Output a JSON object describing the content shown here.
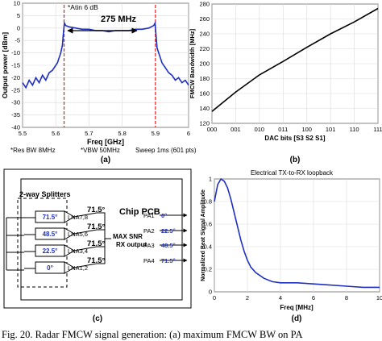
{
  "panels": {
    "a": {
      "label": "(a)",
      "annotation": "*Atin 6 dB",
      "bw_label": "275 MHz",
      "notes": [
        "*Res BW 8MHz",
        "*VBW 50MHz",
        "Sweep 1ms (601 pts)"
      ]
    },
    "b": {
      "label": "(b)"
    },
    "c": {
      "label": "(c)",
      "splitter_label": "2-way Splitters",
      "chip_label": "Chip PCB",
      "maxsnr_label": [
        "MAX SNR",
        "RX output"
      ],
      "lna_labels": [
        "LNA7,8",
        "LNA5,6",
        "LNA3,4",
        "LNA1,2"
      ],
      "phase_in": [
        "71.5°",
        "48.5°",
        "22.5°",
        "0°"
      ],
      "phase_mid": [
        "71.5°",
        "71.5°",
        "71.5°",
        "71.5°"
      ],
      "pa_labels": [
        "PA1",
        "PA2",
        "PA3",
        "PA4"
      ],
      "pa_phases": [
        "0°",
        "22.5°",
        "48.5°",
        "71.5°"
      ]
    },
    "d": {
      "label": "(d)"
    }
  },
  "caption": "Fig. 20.   Radar FMCW signal generation: (a) maximum FMCW BW on PA",
  "chart_data": [
    {
      "id": "a",
      "type": "line",
      "title": "",
      "xlabel": "Freq [GHz]",
      "ylabel": "Output power [dBm]",
      "xlim": [
        5.5,
        6.0
      ],
      "ylim": [
        -40,
        10
      ],
      "xticks": [
        5.5,
        5.6,
        5.7,
        5.8,
        5.9,
        6.0
      ],
      "xticklabels": [
        "5.5",
        "5.6",
        "5.7",
        "5.8",
        "5.9",
        "6"
      ],
      "yticks": [
        -40,
        -35,
        -30,
        -25,
        -20,
        -15,
        -10,
        -5,
        0,
        5,
        10
      ],
      "grid": true,
      "markers": [
        5.625,
        5.9
      ],
      "series": [
        {
          "x": [
            5.5,
            5.51,
            5.52,
            5.53,
            5.54,
            5.55,
            5.56,
            5.57,
            5.58,
            5.59,
            5.6,
            5.605,
            5.61,
            5.615,
            5.62,
            5.623,
            5.626,
            5.63,
            5.64,
            5.66,
            5.68,
            5.7,
            5.72,
            5.74,
            5.76,
            5.78,
            5.8,
            5.82,
            5.84,
            5.86,
            5.88,
            5.895,
            5.899,
            5.902,
            5.905,
            5.91,
            5.915,
            5.92,
            5.93,
            5.94,
            5.95,
            5.96,
            5.97,
            5.98,
            5.99,
            6.0
          ],
          "y": [
            -22,
            -24,
            -21,
            -23,
            -20,
            -22,
            -19,
            -21,
            -18,
            -17,
            -15,
            -14,
            -12,
            -10,
            -7,
            -2,
            2,
            1,
            0.5,
            0,
            -0.5,
            -0.5,
            -1,
            -1,
            -1.5,
            -1,
            -1,
            -1,
            -0.5,
            -0.5,
            0,
            1,
            2,
            -3,
            -8,
            -10,
            -12,
            -14,
            -16,
            -18,
            -19,
            -21,
            -20,
            -22,
            -21,
            -23
          ]
        }
      ]
    },
    {
      "id": "b",
      "type": "line",
      "title": "",
      "xlabel": "DAC bits [S3 S2 S1]",
      "ylabel": "FMCW Bandwidth [MHz]",
      "ylim": [
        120,
        280
      ],
      "yticks": [
        120,
        140,
        160,
        180,
        200,
        220,
        240,
        260,
        280
      ],
      "categories": [
        "000",
        "001",
        "010",
        "011",
        "100",
        "101",
        "110",
        "111"
      ],
      "grid": true,
      "series": [
        {
          "values": [
            136,
            162,
            185,
            203,
            222,
            240,
            256,
            274
          ]
        }
      ]
    },
    {
      "id": "d",
      "type": "line",
      "title": "Electrical TX-to-RX loopback",
      "xlabel": "Freq [MHz]",
      "ylabel": "Normalized Beat Signal Amplitude",
      "xlim": [
        0,
        10
      ],
      "ylim": [
        0,
        1
      ],
      "xticks": [
        0,
        2,
        4,
        6,
        8,
        10
      ],
      "yticks": [
        0,
        0.2,
        0.4,
        0.6,
        0.8,
        1
      ],
      "grid": true,
      "series": [
        {
          "x": [
            0,
            0.2,
            0.4,
            0.6,
            0.8,
            1.0,
            1.2,
            1.4,
            1.6,
            1.8,
            2.0,
            2.2,
            2.5,
            3.0,
            3.5,
            4.0,
            4.5,
            5,
            6,
            7,
            8,
            9,
            10
          ],
          "y": [
            0.8,
            0.95,
            1.0,
            0.98,
            0.92,
            0.82,
            0.7,
            0.58,
            0.46,
            0.36,
            0.28,
            0.22,
            0.17,
            0.12,
            0.09,
            0.08,
            0.08,
            0.08,
            0.07,
            0.06,
            0.05,
            0.04,
            0.04
          ]
        }
      ]
    }
  ]
}
